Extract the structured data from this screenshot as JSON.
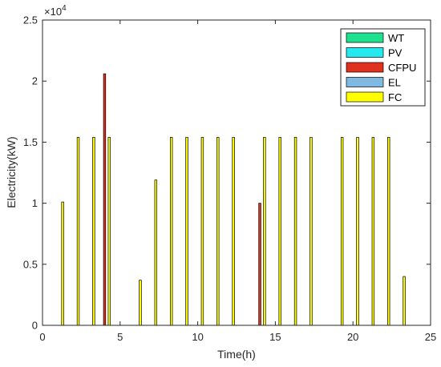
{
  "chart_data": {
    "type": "bar",
    "xlabel": "Time(h)",
    "ylabel": "Electricity(kW)",
    "y_exponent": "×10",
    "y_exponent_power": "4",
    "xlim": [
      0,
      25
    ],
    "ylim": [
      0,
      25000
    ],
    "x_ticks": [
      0,
      5,
      10,
      15,
      20,
      25
    ],
    "y_ticks": [
      0,
      5000,
      10000,
      15000,
      20000,
      25000
    ],
    "y_tick_labels": [
      "0",
      "0.5",
      "1",
      "1.5",
      "2",
      "2.5"
    ],
    "x_tick_labels": [
      "0",
      "5",
      "10",
      "15",
      "20",
      "25"
    ],
    "grid": false,
    "legend_position": "top-right",
    "bar_width_hours": 0.14,
    "series": [
      {
        "name": "WT",
        "color": "#1fe08f",
        "points": []
      },
      {
        "name": "PV",
        "color": "#22eaee",
        "points": []
      },
      {
        "name": "CFPU",
        "color": "#e0301e",
        "points": [
          {
            "x": 4,
            "y": 20600
          },
          {
            "x": 14,
            "y": 10000
          }
        ]
      },
      {
        "name": "EL",
        "color": "#7fb8e0",
        "points": []
      },
      {
        "name": "FC",
        "color": "#ffff00",
        "points": [
          {
            "x": 1.3,
            "y": 10100
          },
          {
            "x": 2.3,
            "y": 15400
          },
          {
            "x": 3.3,
            "y": 15400
          },
          {
            "x": 4.3,
            "y": 15400
          },
          {
            "x": 6.3,
            "y": 3700
          },
          {
            "x": 7.3,
            "y": 11900
          },
          {
            "x": 8.3,
            "y": 15400
          },
          {
            "x": 9.3,
            "y": 15400
          },
          {
            "x": 10.3,
            "y": 15400
          },
          {
            "x": 11.3,
            "y": 15400
          },
          {
            "x": 12.3,
            "y": 15400
          },
          {
            "x": 14.3,
            "y": 15400
          },
          {
            "x": 15.3,
            "y": 15400
          },
          {
            "x": 16.3,
            "y": 15400
          },
          {
            "x": 17.3,
            "y": 15400
          },
          {
            "x": 19.3,
            "y": 15400
          },
          {
            "x": 20.3,
            "y": 15400
          },
          {
            "x": 21.3,
            "y": 15400
          },
          {
            "x": 22.3,
            "y": 15400
          },
          {
            "x": 23.3,
            "y": 4000
          }
        ]
      }
    ]
  }
}
